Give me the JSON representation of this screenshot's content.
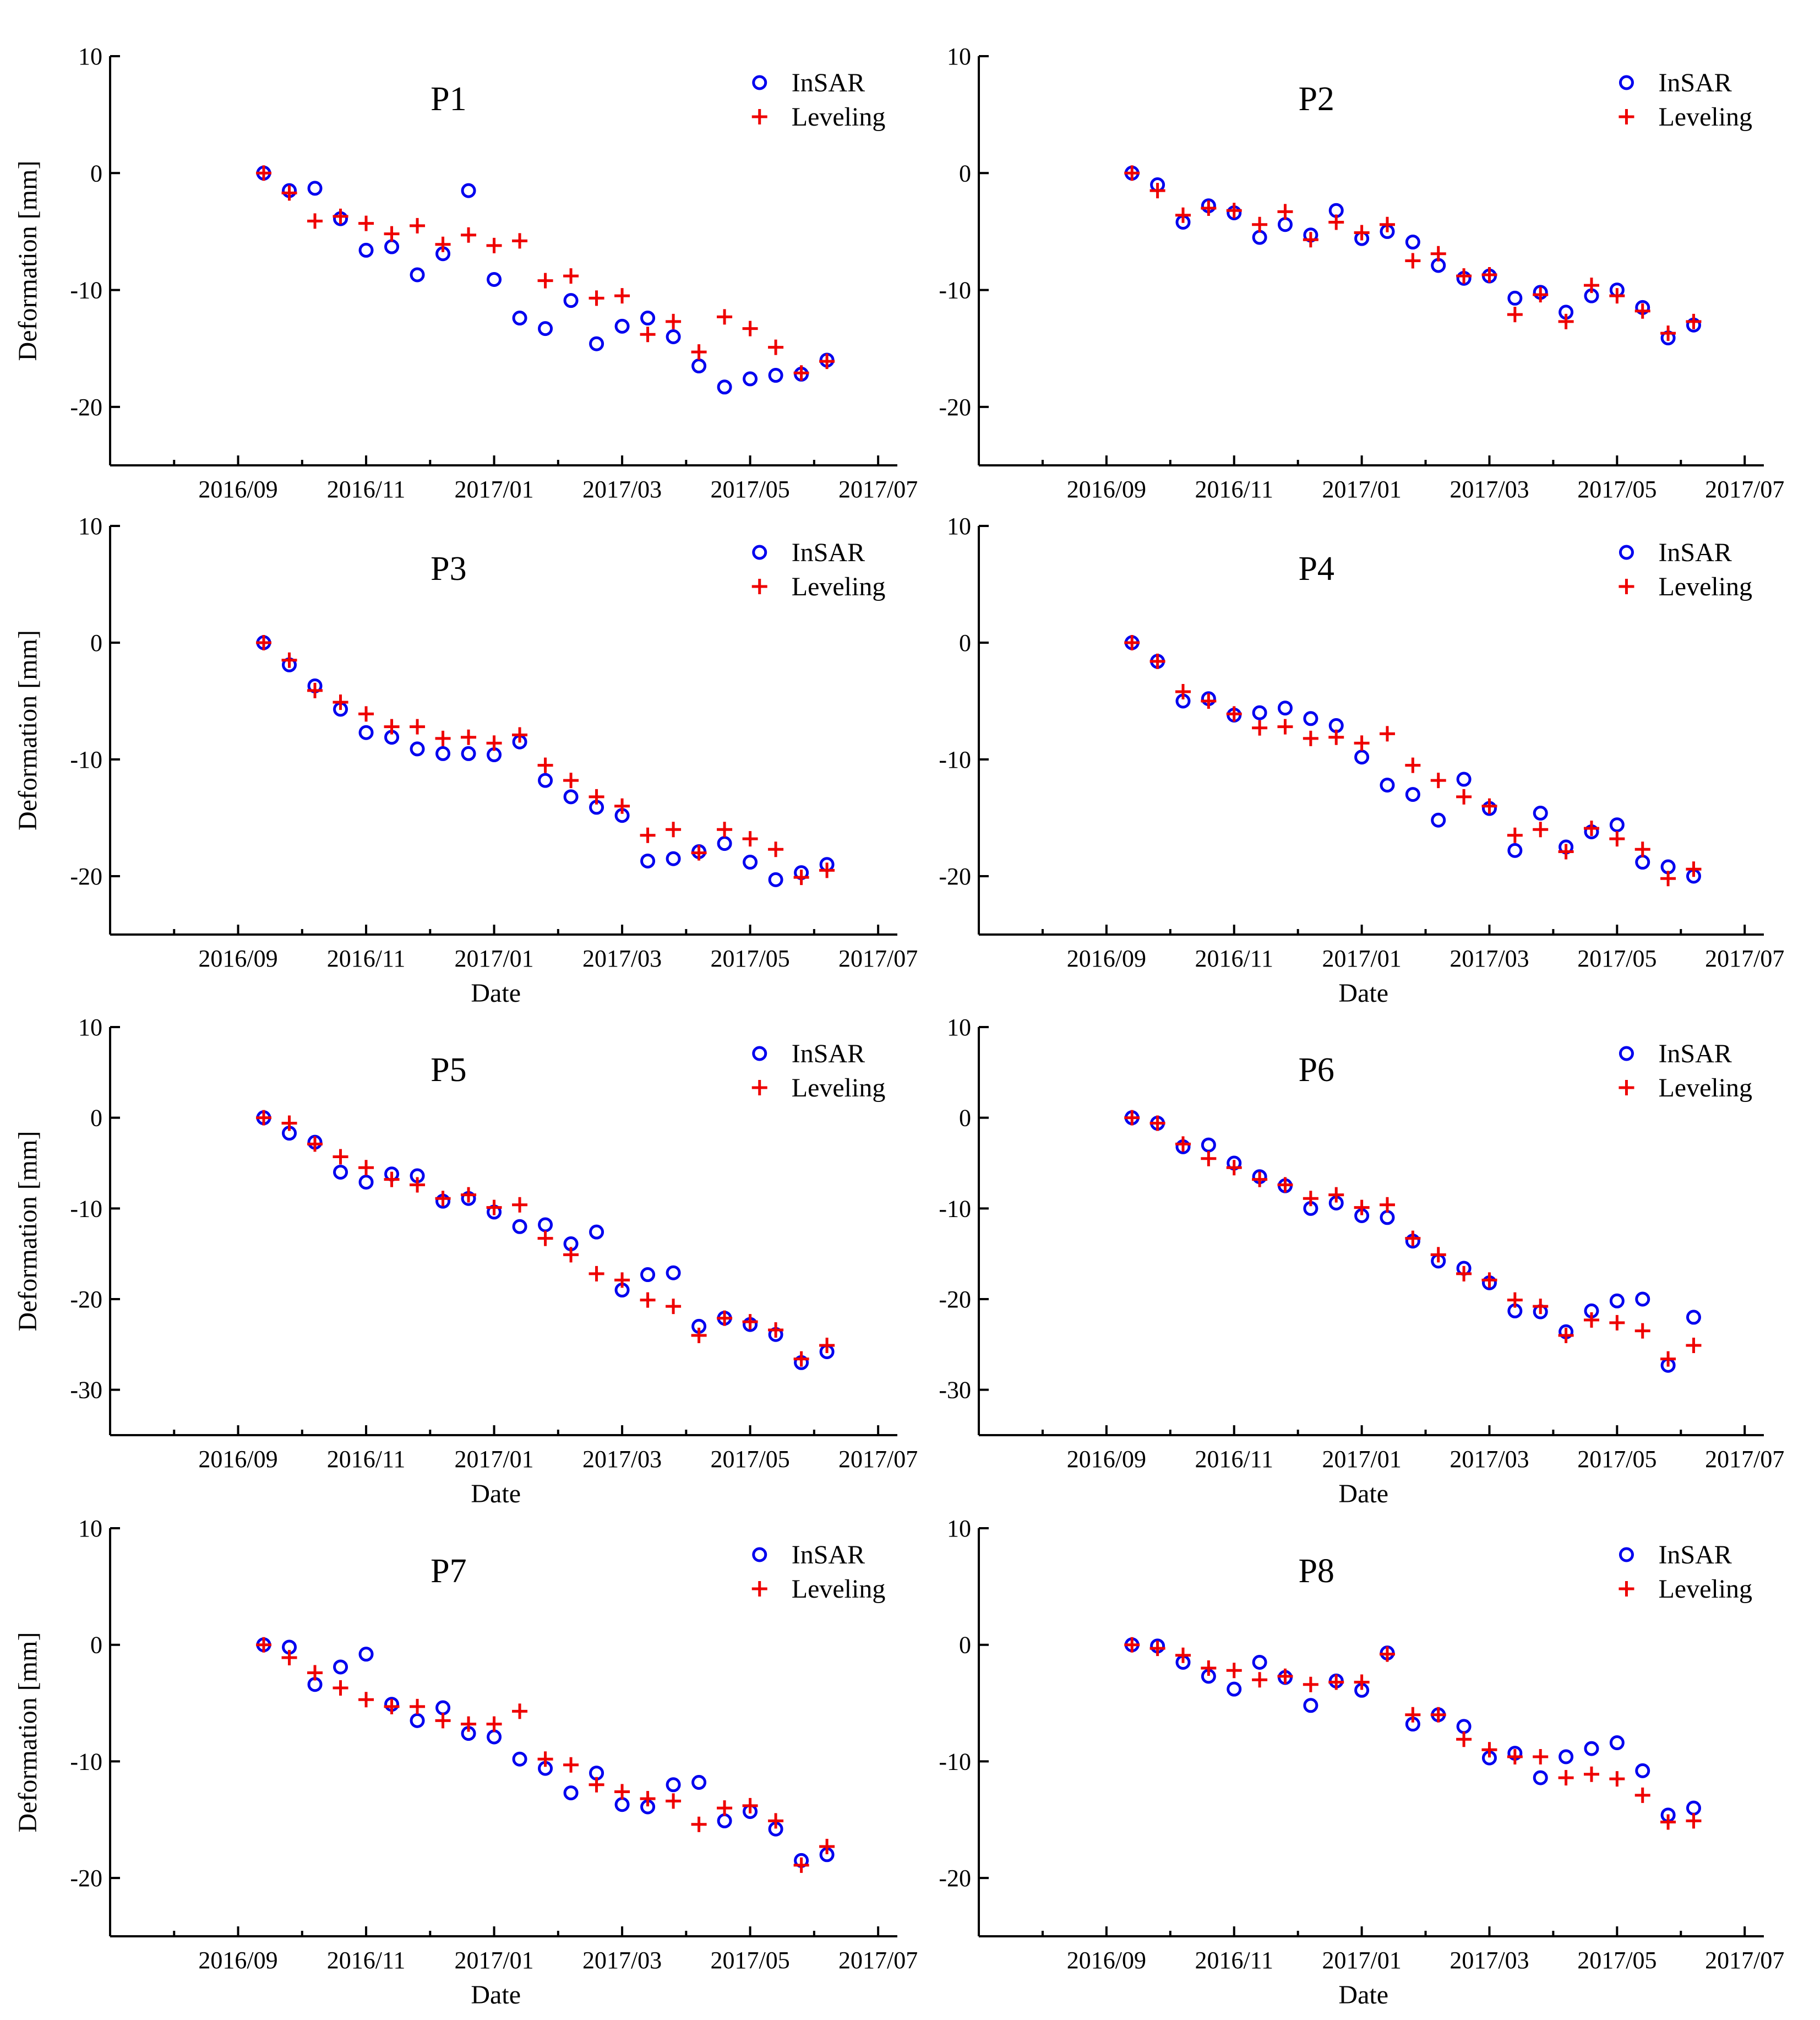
{
  "colors": {
    "insar": "#0000ee",
    "leveling": "#ee0000",
    "axis": "#000000"
  },
  "chart_data": [
    {
      "type": "scatter",
      "title": "P1",
      "xlabel": "",
      "ylabel": "Deformation [mm]",
      "ylim": [
        -25,
        10
      ],
      "yticks": [
        10,
        0,
        -10,
        -20
      ],
      "xticks": [
        "2016/09",
        "2016/11",
        "2017/01",
        "2017/03",
        "2017/05",
        "2017/07"
      ],
      "legend": "top-right",
      "series": [
        {
          "name": "InSAR",
          "marker": "circle",
          "x": [
            2.4,
            2.8,
            3.2,
            3.6,
            4.0,
            4.4,
            4.8,
            5.2,
            5.6,
            6.0,
            6.4,
            6.8,
            7.2,
            7.6,
            8.0,
            8.4,
            8.8,
            9.2,
            9.6,
            10.0,
            10.4,
            10.8,
            11.2
          ],
          "y": [
            0,
            -1.5,
            -1.3,
            -3.9,
            -6.6,
            -6.3,
            -8.7,
            -6.9,
            -1.5,
            -9.1,
            -12.4,
            -13.3,
            -10.9,
            -14.6,
            -13.1,
            -12.4,
            -14.0,
            -16.5,
            -18.3,
            -17.6,
            -17.3,
            -17.2,
            -16.0
          ]
        },
        {
          "name": "Leveling",
          "marker": "plus",
          "x": [
            2.4,
            2.8,
            3.2,
            3.6,
            4.0,
            4.4,
            4.8,
            5.2,
            5.6,
            6.0,
            6.4,
            6.8,
            7.2,
            7.6,
            8.0,
            8.4,
            8.8,
            9.2,
            9.6,
            10.0,
            10.4,
            10.8,
            11.2
          ],
          "y": [
            0,
            -1.7,
            -4.1,
            -3.7,
            -4.3,
            -5.2,
            -4.5,
            -6.1,
            -5.3,
            -6.2,
            -5.8,
            -9.2,
            -8.8,
            -10.7,
            -10.5,
            -13.8,
            -12.7,
            -15.3,
            -12.3,
            -13.3,
            -14.9,
            -17.1,
            -16.1
          ]
        }
      ]
    },
    {
      "type": "scatter",
      "title": "P2",
      "xlabel": "",
      "ylabel": "",
      "ylim": [
        -25,
        10
      ],
      "yticks": [
        10,
        0,
        -10,
        -20
      ],
      "xticks": [
        "2016/09",
        "2016/11",
        "2017/01",
        "2017/03",
        "2017/05",
        "2017/07"
      ],
      "legend": "top-right",
      "series": [
        {
          "name": "InSAR",
          "marker": "circle",
          "x": [
            2.4,
            2.8,
            3.2,
            3.6,
            4.0,
            4.4,
            4.8,
            5.2,
            5.6,
            6.0,
            6.4,
            6.8,
            7.2,
            7.6,
            8.0,
            8.4,
            8.8,
            9.2,
            9.6,
            10.0,
            10.4,
            10.8,
            11.2
          ],
          "y": [
            0,
            -1.0,
            -4.2,
            -2.8,
            -3.4,
            -5.5,
            -4.4,
            -5.3,
            -3.2,
            -5.6,
            -5.0,
            -5.9,
            -7.9,
            -9.0,
            -8.8,
            -10.7,
            -10.2,
            -11.9,
            -10.5,
            -10.0,
            -11.5,
            -14.1,
            -13.0
          ]
        },
        {
          "name": "Leveling",
          "marker": "plus",
          "x": [
            2.4,
            2.8,
            3.2,
            3.6,
            4.0,
            4.4,
            4.8,
            5.2,
            5.6,
            6.0,
            6.4,
            6.8,
            7.2,
            7.6,
            8.0,
            8.4,
            8.8,
            9.2,
            9.6,
            10.0,
            10.4,
            10.8,
            11.2
          ],
          "y": [
            0,
            -1.5,
            -3.6,
            -3.0,
            -3.2,
            -4.4,
            -3.3,
            -5.7,
            -4.2,
            -5.1,
            -4.4,
            -7.5,
            -6.9,
            -8.8,
            -8.7,
            -12.1,
            -10.4,
            -12.7,
            -9.6,
            -10.5,
            -11.8,
            -13.7,
            -12.7
          ]
        }
      ]
    },
    {
      "type": "scatter",
      "title": "P3",
      "xlabel": "Date",
      "ylabel": "Deformation [mm]",
      "ylim": [
        -25,
        10
      ],
      "yticks": [
        10,
        0,
        -10,
        -20
      ],
      "xticks": [
        "2016/09",
        "2016/11",
        "2017/01",
        "2017/03",
        "2017/05",
        "2017/07"
      ],
      "legend": "top-right",
      "series": [
        {
          "name": "InSAR",
          "marker": "circle",
          "x": [
            2.4,
            2.8,
            3.2,
            3.6,
            4.0,
            4.4,
            4.8,
            5.2,
            5.6,
            6.0,
            6.4,
            6.8,
            7.2,
            7.6,
            8.0,
            8.4,
            8.8,
            9.2,
            9.6,
            10.0,
            10.4,
            10.8,
            11.2
          ],
          "y": [
            0,
            -1.9,
            -3.7,
            -5.7,
            -7.7,
            -8.1,
            -9.1,
            -9.5,
            -9.5,
            -9.6,
            -8.5,
            -11.8,
            -13.2,
            -14.1,
            -14.8,
            -18.7,
            -18.5,
            -17.9,
            -17.2,
            -18.8,
            -20.3,
            -19.7,
            -19.0
          ]
        },
        {
          "name": "Leveling",
          "marker": "plus",
          "x": [
            2.4,
            2.8,
            3.2,
            3.6,
            4.0,
            4.4,
            4.8,
            5.2,
            5.6,
            6.0,
            6.4,
            6.8,
            7.2,
            7.6,
            8.0,
            8.4,
            8.8,
            9.2,
            9.6,
            10.0,
            10.4,
            10.8,
            11.2
          ],
          "y": [
            0,
            -1.5,
            -4.1,
            -5.1,
            -6.1,
            -7.2,
            -7.2,
            -8.2,
            -8.1,
            -8.6,
            -7.9,
            -10.5,
            -11.8,
            -13.2,
            -14.0,
            -16.5,
            -16.0,
            -18.0,
            -16.0,
            -16.8,
            -17.7,
            -20.1,
            -19.5
          ]
        }
      ]
    },
    {
      "type": "scatter",
      "title": "P4",
      "xlabel": "Date",
      "ylabel": "",
      "ylim": [
        -25,
        10
      ],
      "yticks": [
        10,
        0,
        -10,
        -20
      ],
      "xticks": [
        "2016/09",
        "2016/11",
        "2017/01",
        "2017/03",
        "2017/05",
        "2017/07"
      ],
      "legend": "top-right",
      "series": [
        {
          "name": "InSAR",
          "marker": "circle",
          "x": [
            2.4,
            2.8,
            3.2,
            3.6,
            4.0,
            4.4,
            4.8,
            5.2,
            5.6,
            6.0,
            6.4,
            6.8,
            7.2,
            7.6,
            8.0,
            8.4,
            8.8,
            9.2,
            9.6,
            10.0,
            10.4,
            10.8,
            11.2
          ],
          "y": [
            0,
            -1.6,
            -5.0,
            -4.8,
            -6.2,
            -6.0,
            -5.6,
            -6.5,
            -7.1,
            -9.8,
            -12.2,
            -13.0,
            -15.2,
            -11.7,
            -14.2,
            -17.8,
            -14.6,
            -17.5,
            -16.2,
            -15.6,
            -18.8,
            -19.2,
            -20.0
          ]
        },
        {
          "name": "Leveling",
          "marker": "plus",
          "x": [
            2.4,
            2.8,
            3.2,
            3.6,
            4.0,
            4.4,
            4.8,
            5.2,
            5.6,
            6.0,
            6.4,
            6.8,
            7.2,
            7.6,
            8.0,
            8.4,
            8.8,
            9.2,
            9.6,
            10.0,
            10.4,
            10.8,
            11.2
          ],
          "y": [
            0,
            -1.6,
            -4.2,
            -5.0,
            -6.1,
            -7.3,
            -7.2,
            -8.2,
            -8.1,
            -8.6,
            -7.8,
            -10.5,
            -11.8,
            -13.2,
            -14.0,
            -16.5,
            -16.0,
            -17.9,
            -15.9,
            -16.8,
            -17.7,
            -20.2,
            -19.4
          ]
        }
      ]
    },
    {
      "type": "scatter",
      "title": "P5",
      "xlabel": "Date",
      "ylabel": "Deformation [mm]",
      "ylim": [
        -35,
        10
      ],
      "yticks": [
        10,
        0,
        -10,
        -20,
        -30
      ],
      "xticks": [
        "2016/09",
        "2016/11",
        "2017/01",
        "2017/03",
        "2017/05",
        "2017/07"
      ],
      "legend": "top-right",
      "series": [
        {
          "name": "InSAR",
          "marker": "circle",
          "x": [
            2.4,
            2.8,
            3.2,
            3.6,
            4.0,
            4.4,
            4.8,
            5.2,
            5.6,
            6.0,
            6.4,
            6.8,
            7.2,
            7.6,
            8.0,
            8.4,
            8.8,
            9.2,
            9.6,
            10.0,
            10.4,
            10.8,
            11.2
          ],
          "y": [
            0,
            -1.7,
            -2.7,
            -6.0,
            -7.1,
            -6.2,
            -6.4,
            -9.2,
            -8.9,
            -10.4,
            -12.0,
            -11.8,
            -13.9,
            -12.6,
            -19.0,
            -17.3,
            -17.1,
            -23.0,
            -22.1,
            -22.8,
            -23.9,
            -27.0,
            -25.8
          ]
        },
        {
          "name": "Leveling",
          "marker": "plus",
          "x": [
            2.4,
            2.8,
            3.2,
            3.6,
            4.0,
            4.4,
            4.8,
            5.2,
            5.6,
            6.0,
            6.4,
            6.8,
            7.2,
            7.6,
            8.0,
            8.4,
            8.8,
            9.2,
            9.6,
            10.0,
            10.4,
            10.8,
            11.2
          ],
          "y": [
            0,
            -0.6,
            -2.9,
            -4.3,
            -5.5,
            -6.8,
            -7.4,
            -8.9,
            -8.5,
            -9.9,
            -9.6,
            -13.3,
            -15.1,
            -17.2,
            -17.9,
            -20.1,
            -20.8,
            -24.0,
            -22.1,
            -22.5,
            -23.4,
            -26.6,
            -25.1
          ]
        }
      ]
    },
    {
      "type": "scatter",
      "title": "P6",
      "xlabel": "Date",
      "ylabel": "",
      "ylim": [
        -35,
        10
      ],
      "yticks": [
        10,
        0,
        -10,
        -20,
        -30
      ],
      "xticks": [
        "2016/09",
        "2016/11",
        "2017/01",
        "2017/03",
        "2017/05",
        "2017/07"
      ],
      "legend": "top-right",
      "series": [
        {
          "name": "InSAR",
          "marker": "circle",
          "x": [
            2.4,
            2.8,
            3.2,
            3.6,
            4.0,
            4.4,
            4.8,
            5.2,
            5.6,
            6.0,
            6.4,
            6.8,
            7.2,
            7.6,
            8.0,
            8.4,
            8.8,
            9.2,
            9.6,
            10.0,
            10.4,
            10.8,
            11.2
          ],
          "y": [
            0,
            -0.6,
            -3.2,
            -3.0,
            -5.0,
            -6.5,
            -7.5,
            -10.0,
            -9.4,
            -10.8,
            -11.0,
            -13.6,
            -15.8,
            -16.6,
            -18.2,
            -21.3,
            -21.4,
            -23.6,
            -21.3,
            -20.2,
            -20.0,
            -27.3,
            -22.0
          ]
        },
        {
          "name": "Leveling",
          "marker": "plus",
          "x": [
            2.4,
            2.8,
            3.2,
            3.6,
            4.0,
            4.4,
            4.8,
            5.2,
            5.6,
            6.0,
            6.4,
            6.8,
            7.2,
            7.6,
            8.0,
            8.4,
            8.8,
            9.2,
            9.6,
            10.0,
            10.4,
            10.8,
            11.2
          ],
          "y": [
            0,
            -0.6,
            -2.9,
            -4.5,
            -5.5,
            -6.8,
            -7.4,
            -8.9,
            -8.5,
            -9.9,
            -9.6,
            -13.3,
            -15.1,
            -17.2,
            -17.9,
            -20.1,
            -20.8,
            -24.0,
            -22.3,
            -22.6,
            -23.5,
            -26.6,
            -25.1
          ]
        }
      ]
    },
    {
      "type": "scatter",
      "title": "P7",
      "xlabel": "Date",
      "ylabel": "Deformation [mm]",
      "ylim": [
        -25,
        10
      ],
      "yticks": [
        10,
        0,
        -10,
        -20
      ],
      "xticks": [
        "2016/09",
        "2016/11",
        "2017/01",
        "2017/03",
        "2017/05",
        "2017/07"
      ],
      "legend": "top-right",
      "series": [
        {
          "name": "InSAR",
          "marker": "circle",
          "x": [
            2.4,
            2.8,
            3.2,
            3.6,
            4.0,
            4.4,
            4.8,
            5.2,
            5.6,
            6.0,
            6.4,
            6.8,
            7.2,
            7.6,
            8.0,
            8.4,
            8.8,
            9.2,
            9.6,
            10.0,
            10.4,
            10.8,
            11.2
          ],
          "y": [
            0,
            -0.2,
            -3.4,
            -1.9,
            -0.8,
            -5.1,
            -6.5,
            -5.4,
            -7.6,
            -7.9,
            -9.8,
            -10.6,
            -12.7,
            -11.0,
            -13.7,
            -13.9,
            -12.0,
            -11.8,
            -15.1,
            -14.3,
            -15.8,
            -18.5,
            -18.0
          ]
        },
        {
          "name": "Leveling",
          "marker": "plus",
          "x": [
            2.4,
            2.8,
            3.2,
            3.6,
            4.0,
            4.4,
            4.8,
            5.2,
            5.6,
            6.0,
            6.4,
            6.8,
            7.2,
            7.6,
            8.0,
            8.4,
            8.8,
            9.2,
            9.6,
            10.0,
            10.4,
            10.8,
            11.2
          ],
          "y": [
            0,
            -1.1,
            -2.4,
            -3.7,
            -4.7,
            -5.3,
            -5.3,
            -6.5,
            -6.8,
            -6.8,
            -5.7,
            -9.8,
            -10.3,
            -12.0,
            -12.6,
            -13.2,
            -13.4,
            -15.4,
            -14.0,
            -13.8,
            -15.1,
            -18.9,
            -17.3
          ]
        }
      ]
    },
    {
      "type": "scatter",
      "title": "P8",
      "xlabel": "Date",
      "ylabel": "",
      "ylim": [
        -25,
        10
      ],
      "yticks": [
        10,
        0,
        -10,
        -20
      ],
      "xticks": [
        "2016/09",
        "2016/11",
        "2017/01",
        "2017/03",
        "2017/05",
        "2017/07"
      ],
      "legend": "top-right",
      "series": [
        {
          "name": "InSAR",
          "marker": "circle",
          "x": [
            2.4,
            2.8,
            3.2,
            3.6,
            4.0,
            4.4,
            4.8,
            5.2,
            5.6,
            6.0,
            6.4,
            6.8,
            7.2,
            7.6,
            8.0,
            8.4,
            8.8,
            9.2,
            9.6,
            10.0,
            10.4,
            10.8,
            11.2
          ],
          "y": [
            0,
            -0.1,
            -1.5,
            -2.7,
            -3.8,
            -1.5,
            -2.8,
            -5.2,
            -3.1,
            -3.9,
            -0.7,
            -6.8,
            -6.0,
            -7.0,
            -9.7,
            -9.3,
            -11.4,
            -9.6,
            -8.9,
            -8.4,
            -10.8,
            -14.6,
            -14.0
          ]
        },
        {
          "name": "Leveling",
          "marker": "plus",
          "x": [
            2.4,
            2.8,
            3.2,
            3.6,
            4.0,
            4.4,
            4.8,
            5.2,
            5.6,
            6.0,
            6.4,
            6.8,
            7.2,
            7.6,
            8.0,
            8.4,
            8.8,
            9.2,
            9.6,
            10.0,
            10.4,
            10.8,
            11.2
          ],
          "y": [
            0,
            -0.3,
            -0.9,
            -2.0,
            -2.2,
            -3.0,
            -2.7,
            -3.4,
            -3.2,
            -3.2,
            -0.8,
            -6.0,
            -6.0,
            -8.1,
            -9.0,
            -9.6,
            -9.6,
            -11.4,
            -11.1,
            -11.5,
            -12.9,
            -15.2,
            -15.1
          ]
        }
      ]
    }
  ]
}
